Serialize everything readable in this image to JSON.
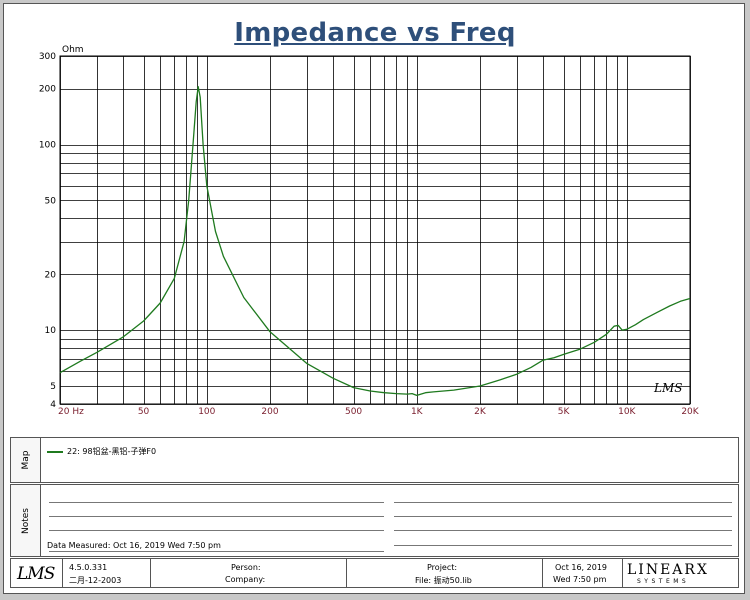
{
  "colors": {
    "trace": "#1f7a1f",
    "title": "#2e4f7a",
    "xtick": "#7a1e2e",
    "grid": "#000000"
  },
  "chart_data": {
    "type": "line",
    "title": "Impedance vs Freq",
    "ylabel": "Ohm",
    "xscale": "log",
    "yscale": "log",
    "xlim": [
      20,
      20000
    ],
    "ylim": [
      4,
      300
    ],
    "x_tick_labels": [
      {
        "v": 20,
        "label": "20 Hz"
      },
      {
        "v": 50,
        "label": "50"
      },
      {
        "v": 100,
        "label": "100"
      },
      {
        "v": 200,
        "label": "200"
      },
      {
        "v": 500,
        "label": "500"
      },
      {
        "v": 1000,
        "label": "1K"
      },
      {
        "v": 2000,
        "label": "2K"
      },
      {
        "v": 5000,
        "label": "5K"
      },
      {
        "v": 10000,
        "label": "10K"
      },
      {
        "v": 20000,
        "label": "20K"
      }
    ],
    "y_tick_labels": [
      {
        "v": 300,
        "label": "300"
      },
      {
        "v": 200,
        "label": "200"
      },
      {
        "v": 100,
        "label": "100"
      },
      {
        "v": 50,
        "label": "50"
      },
      {
        "v": 20,
        "label": "20"
      },
      {
        "v": 10,
        "label": "10"
      },
      {
        "v": 5,
        "label": "5"
      },
      {
        "v": 4,
        "label": "4"
      }
    ],
    "x_grid": [
      20,
      30,
      40,
      50,
      60,
      70,
      80,
      90,
      100,
      200,
      300,
      400,
      500,
      600,
      700,
      800,
      900,
      1000,
      2000,
      3000,
      4000,
      5000,
      6000,
      7000,
      8000,
      9000,
      10000,
      20000
    ],
    "y_grid": [
      4,
      5,
      6,
      7,
      8,
      9,
      10,
      20,
      30,
      40,
      50,
      60,
      70,
      80,
      90,
      100,
      200,
      300
    ],
    "series": [
      {
        "name": "22: 98铝盆-黑铝-子弹F0",
        "x": [
          20,
          25,
          30,
          40,
          50,
          60,
          70,
          78,
          82,
          86,
          89,
          91,
          93,
          96,
          100,
          110,
          120,
          150,
          200,
          300,
          400,
          500,
          600,
          700,
          800,
          900,
          950,
          1000,
          1100,
          1200,
          1500,
          2000,
          2500,
          3000,
          3500,
          4000,
          4500,
          5000,
          6000,
          7000,
          8000,
          8700,
          9100,
          9500,
          10000,
          11000,
          12000,
          14000,
          16000,
          18000,
          20000
        ],
        "values": [
          5.9,
          6.8,
          7.6,
          9.2,
          11.2,
          14,
          19,
          30,
          50,
          100,
          170,
          205,
          180,
          100,
          60,
          34,
          25,
          15,
          9.8,
          6.6,
          5.5,
          4.9,
          4.7,
          4.6,
          4.55,
          4.52,
          4.55,
          4.45,
          4.6,
          4.65,
          4.75,
          5.0,
          5.4,
          5.8,
          6.3,
          6.9,
          7.1,
          7.4,
          7.9,
          8.6,
          9.5,
          10.5,
          10.6,
          10.0,
          10.1,
          10.7,
          11.4,
          12.5,
          13.5,
          14.3,
          14.8
        ]
      }
    ]
  },
  "watermark": "LMS",
  "map_label": "Map",
  "notes_label": "Notes",
  "data_measured": "Data Measured: Oct 16, 2019  Wed  7:50 pm",
  "footer": {
    "logo": "LMS",
    "version": "4.5.0.331",
    "date_local": "二月-12-2003",
    "person": "Person:",
    "company": "Company:",
    "project": "Project:",
    "file": "File: 振动50.lib",
    "date": "Oct 16, 2019",
    "time": "Wed  7:50 pm",
    "brand": "LINEARX",
    "brand_sub": "SYSTEMS"
  }
}
